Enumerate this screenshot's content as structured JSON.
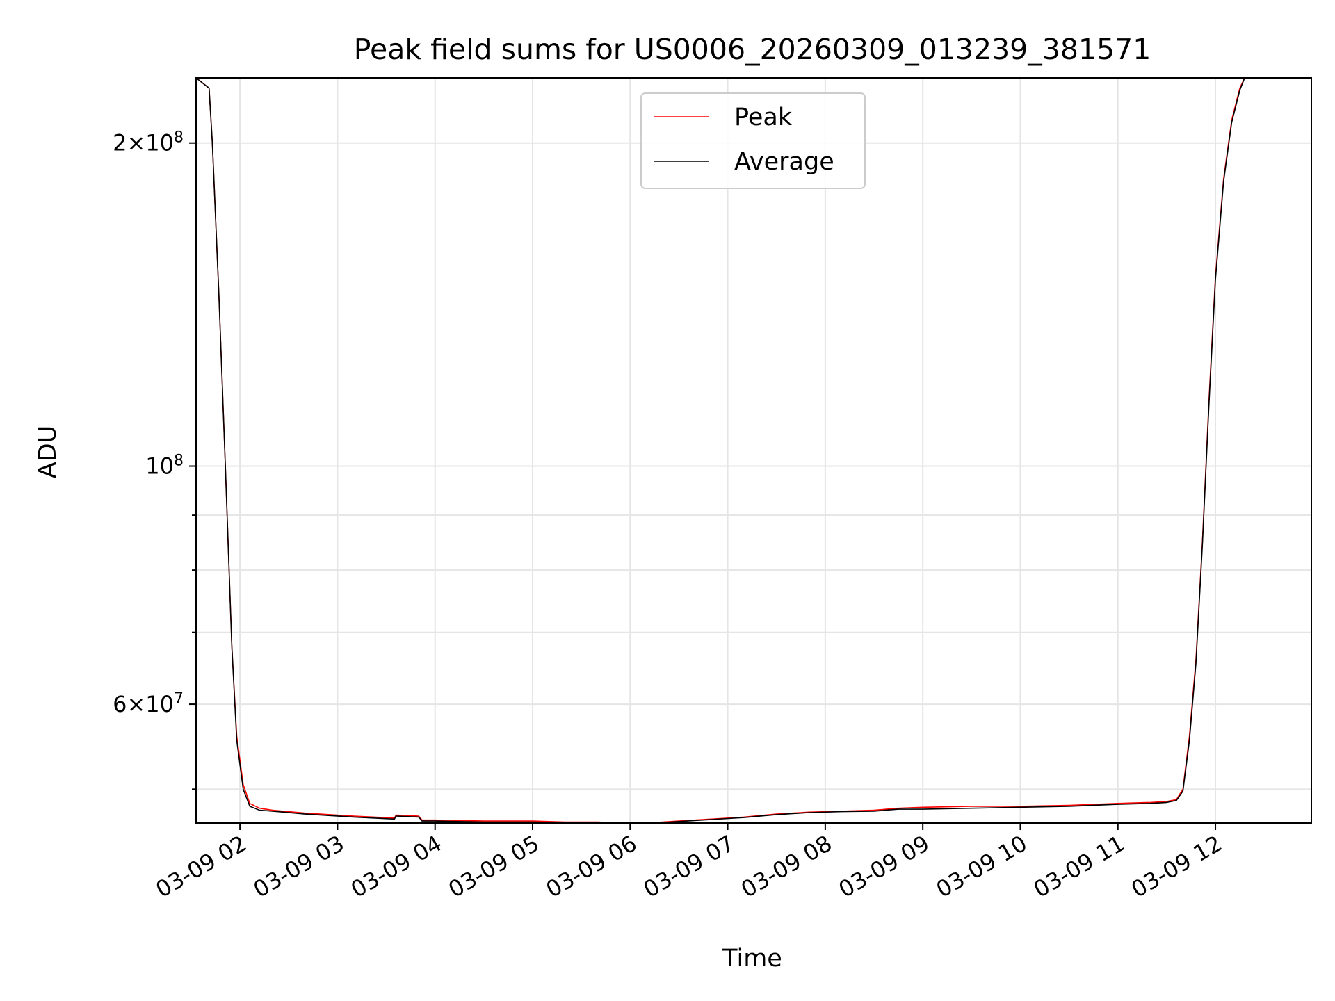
{
  "chart_data": {
    "type": "line",
    "title": "Peak field sums for US0006_20260309_013239_381571",
    "xlabel": "Time",
    "ylabel": "ADU",
    "yscale": "log",
    "grid": true,
    "legend_position": "top-center",
    "x_range": [
      "03-09 01:33",
      "03-09 12:59"
    ],
    "y_range": [
      46500000,
      230000000
    ],
    "x_ticks": [
      "03-09 02",
      "03-09 03",
      "03-09 04",
      "03-09 05",
      "03-09 06",
      "03-09 07",
      "03-09 08",
      "03-09 09",
      "03-09 10",
      "03-09 11",
      "03-09 12"
    ],
    "y_ticks_major": [
      {
        "value": 200000000,
        "mantissa": "2",
        "exponent": "8"
      },
      {
        "value": 100000000,
        "mantissa": "",
        "exponent": "8"
      },
      {
        "value": 60000000,
        "mantissa": "6",
        "exponent": "7"
      }
    ],
    "y_ticks_minor": [
      50000000,
      70000000,
      80000000,
      90000000
    ],
    "series": [
      {
        "name": "Peak",
        "color": "#ff0000",
        "x": [
          "03-09 01:33",
          "03-09 01:41",
          "03-09 01:43",
          "03-09 01:47",
          "03-09 01:51",
          "03-09 01:55",
          "03-09 01:58",
          "03-09 02:02",
          "03-09 02:06",
          "03-09 02:12",
          "03-09 02:20",
          "03-09 02:40",
          "03-09 03:10",
          "03-09 03:35",
          "03-09 03:36",
          "03-09 03:50",
          "03-09 03:52",
          "03-09 04:00",
          "03-09 04:30",
          "03-09 05:00",
          "03-09 05:20",
          "03-09 05:40",
          "03-09 05:55",
          "03-09 06:00",
          "03-09 06:10",
          "03-09 06:20",
          "03-09 06:30",
          "03-09 06:50",
          "03-09 07:10",
          "03-09 07:30",
          "03-09 07:50",
          "03-09 08:10",
          "03-09 08:30",
          "03-09 08:45",
          "03-09 09:00",
          "03-09 09:30",
          "03-09 10:00",
          "03-09 10:30",
          "03-09 11:00",
          "03-09 11:20",
          "03-09 11:30",
          "03-09 11:36",
          "03-09 11:40",
          "03-09 11:44",
          "03-09 11:48",
          "03-09 11:52",
          "03-09 11:56",
          "03-09 12:00",
          "03-09 12:05",
          "03-09 12:10",
          "03-09 12:15",
          "03-09 12:18",
          "03-09 12:59"
        ],
        "y": [
          230000000,
          225000000,
          200000000,
          145000000,
          100000000,
          68000000,
          56000000,
          50500000,
          48500000,
          48000000,
          47800000,
          47500000,
          47200000,
          47000000,
          47300000,
          47200000,
          46800000,
          46800000,
          46700000,
          46700000,
          46600000,
          46600000,
          46500000,
          46500000,
          46500000,
          46600000,
          46700000,
          46900000,
          47100000,
          47400000,
          47600000,
          47700000,
          47800000,
          48000000,
          48100000,
          48200000,
          48200000,
          48300000,
          48500000,
          48600000,
          48700000,
          48900000,
          50000000,
          56000000,
          66000000,
          85000000,
          115000000,
          150000000,
          185000000,
          210000000,
          225000000,
          230000000,
          230000000
        ]
      },
      {
        "name": "Average",
        "color": "#000000",
        "x": [
          "03-09 01:33",
          "03-09 01:41",
          "03-09 01:43",
          "03-09 01:47",
          "03-09 01:51",
          "03-09 01:55",
          "03-09 01:58",
          "03-09 02:02",
          "03-09 02:06",
          "03-09 02:12",
          "03-09 02:20",
          "03-09 02:40",
          "03-09 03:10",
          "03-09 03:35",
          "03-09 03:36",
          "03-09 03:50",
          "03-09 03:52",
          "03-09 04:00",
          "03-09 04:30",
          "03-09 05:00",
          "03-09 05:20",
          "03-09 05:40",
          "03-09 05:55",
          "03-09 06:00",
          "03-09 06:10",
          "03-09 06:20",
          "03-09 06:30",
          "03-09 06:50",
          "03-09 07:10",
          "03-09 07:30",
          "03-09 07:50",
          "03-09 08:10",
          "03-09 08:30",
          "03-09 08:45",
          "03-09 09:00",
          "03-09 09:30",
          "03-09 10:00",
          "03-09 10:30",
          "03-09 11:00",
          "03-09 11:20",
          "03-09 11:30",
          "03-09 11:36",
          "03-09 11:40",
          "03-09 11:44",
          "03-09 11:48",
          "03-09 11:52",
          "03-09 11:56",
          "03-09 12:00",
          "03-09 12:05",
          "03-09 12:10",
          "03-09 12:15",
          "03-09 12:18",
          "03-09 12:59"
        ],
        "y": [
          230000000,
          225000000,
          200000000,
          145000000,
          100000000,
          68000000,
          55500000,
          50000000,
          48200000,
          47800000,
          47700000,
          47400000,
          47100000,
          46900000,
          47200000,
          47100000,
          46700000,
          46700000,
          46600000,
          46600000,
          46550000,
          46550000,
          46500000,
          46500000,
          46500000,
          46550000,
          46650000,
          46850000,
          47050000,
          47350000,
          47550000,
          47650000,
          47700000,
          47900000,
          47900000,
          48000000,
          48100000,
          48200000,
          48400000,
          48500000,
          48600000,
          48800000,
          49800000,
          55500000,
          65500000,
          84500000,
          114000000,
          149000000,
          184000000,
          209000000,
          224000000,
          230000000,
          230000000
        ]
      }
    ]
  }
}
